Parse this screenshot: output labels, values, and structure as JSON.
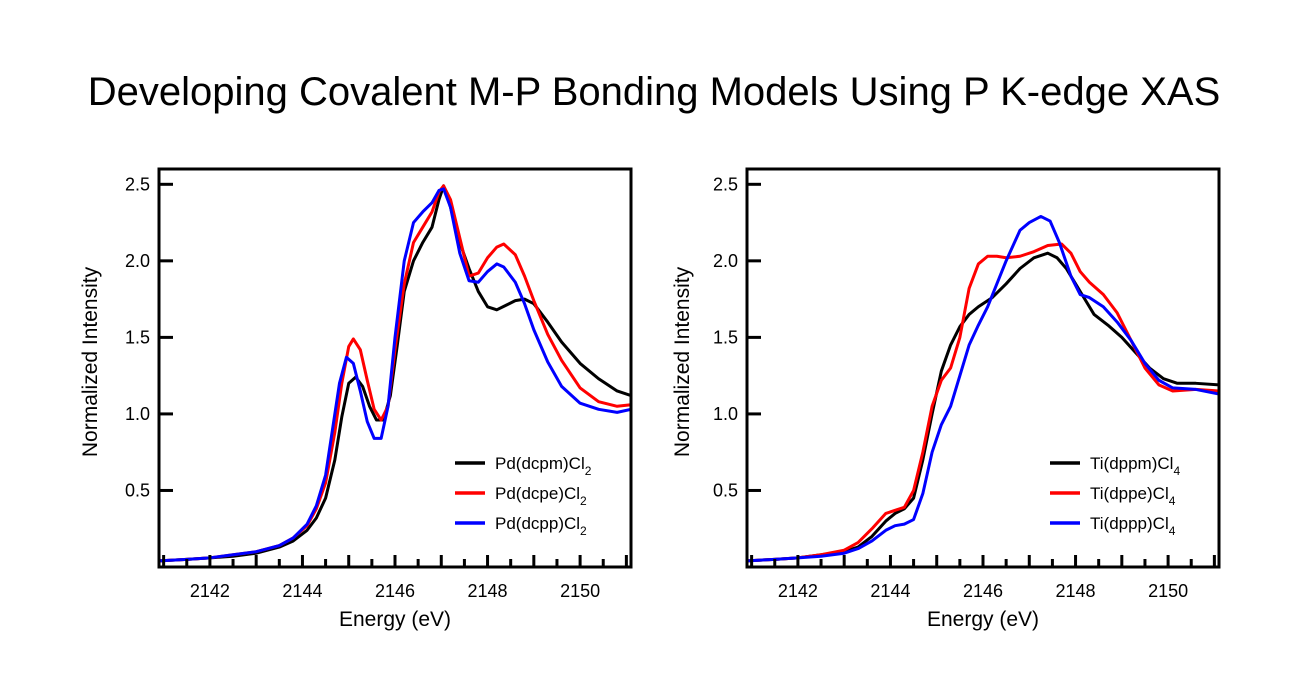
{
  "title": "Developing Covalent M-P Bonding Models Using P K-edge XAS",
  "chart_data": [
    {
      "type": "line",
      "title": "",
      "xlabel": "Energy (eV)",
      "ylabel": "Normalized Intensity",
      "xlim": [
        2140.9,
        2151.1
      ],
      "ylim": [
        0,
        2.6
      ],
      "xticks": [
        2142,
        2144,
        2146,
        2148,
        2150
      ],
      "xtick_labels": [
        "2142",
        "2144",
        "2146",
        "2148",
        "2150"
      ],
      "x_minor_step": 0.5,
      "yticks": [
        0.5,
        1.0,
        1.5,
        2.0,
        2.5
      ],
      "ytick_labels": [
        "0.5",
        "1.0",
        "1.5",
        "2.0",
        "2.5"
      ],
      "grid": false,
      "legend_position": "bottom-right",
      "series": [
        {
          "name": "Pd(dcpm)Cl",
          "subscript": "2",
          "color": "#000000",
          "x": [
            2140.9,
            2141.5,
            2142,
            2142.5,
            2143,
            2143.5,
            2143.8,
            2144.1,
            2144.3,
            2144.5,
            2144.7,
            2144.85,
            2145.0,
            2145.15,
            2145.3,
            2145.45,
            2145.6,
            2145.75,
            2145.9,
            2146.05,
            2146.2,
            2146.4,
            2146.6,
            2146.8,
            2146.95,
            2147.05,
            2147.2,
            2147.4,
            2147.6,
            2147.8,
            2148.0,
            2148.2,
            2148.4,
            2148.6,
            2148.8,
            2149.0,
            2149.3,
            2149.6,
            2150.0,
            2150.4,
            2150.8,
            2151.1
          ],
          "y": [
            0.04,
            0.05,
            0.06,
            0.07,
            0.09,
            0.13,
            0.17,
            0.24,
            0.32,
            0.45,
            0.7,
            0.98,
            1.2,
            1.24,
            1.18,
            1.05,
            0.96,
            0.96,
            1.12,
            1.45,
            1.8,
            2.0,
            2.12,
            2.22,
            2.4,
            2.49,
            2.35,
            2.12,
            1.95,
            1.8,
            1.7,
            1.68,
            1.71,
            1.74,
            1.75,
            1.72,
            1.6,
            1.47,
            1.33,
            1.23,
            1.15,
            1.12
          ]
        },
        {
          "name": "Pd(dcpe)Cl",
          "subscript": "2",
          "color": "#ff0000",
          "x": [
            2140.9,
            2141.5,
            2142,
            2142.5,
            2143,
            2143.5,
            2143.8,
            2144.1,
            2144.3,
            2144.5,
            2144.7,
            2144.85,
            2145.0,
            2145.1,
            2145.25,
            2145.4,
            2145.55,
            2145.7,
            2145.85,
            2146.0,
            2146.2,
            2146.4,
            2146.6,
            2146.8,
            2146.95,
            2147.05,
            2147.2,
            2147.4,
            2147.6,
            2147.8,
            2148.0,
            2148.2,
            2148.35,
            2148.6,
            2148.8,
            2149.0,
            2149.3,
            2149.6,
            2150.0,
            2150.4,
            2150.8,
            2151.1
          ],
          "y": [
            0.04,
            0.05,
            0.06,
            0.08,
            0.1,
            0.14,
            0.19,
            0.27,
            0.38,
            0.55,
            0.88,
            1.2,
            1.44,
            1.49,
            1.42,
            1.22,
            1.03,
            0.96,
            1.05,
            1.42,
            1.85,
            2.12,
            2.22,
            2.32,
            2.45,
            2.49,
            2.4,
            2.15,
            1.9,
            1.92,
            2.02,
            2.09,
            2.11,
            2.04,
            1.9,
            1.74,
            1.52,
            1.35,
            1.17,
            1.08,
            1.05,
            1.06
          ]
        },
        {
          "name": "Pd(dcpp)Cl",
          "subscript": "2",
          "color": "#0000ff",
          "x": [
            2140.9,
            2141.5,
            2142,
            2142.5,
            2143,
            2143.5,
            2143.8,
            2144.1,
            2144.3,
            2144.5,
            2144.65,
            2144.8,
            2144.95,
            2145.1,
            2145.25,
            2145.4,
            2145.55,
            2145.7,
            2145.85,
            2146.0,
            2146.2,
            2146.4,
            2146.6,
            2146.8,
            2146.95,
            2147.05,
            2147.2,
            2147.4,
            2147.6,
            2147.8,
            2148.0,
            2148.2,
            2148.35,
            2148.6,
            2148.8,
            2149.0,
            2149.3,
            2149.6,
            2150.0,
            2150.4,
            2150.8,
            2151.1
          ],
          "y": [
            0.04,
            0.05,
            0.06,
            0.08,
            0.1,
            0.14,
            0.19,
            0.28,
            0.4,
            0.6,
            0.9,
            1.2,
            1.37,
            1.33,
            1.15,
            0.95,
            0.84,
            0.84,
            1.05,
            1.5,
            2.0,
            2.25,
            2.32,
            2.38,
            2.46,
            2.47,
            2.35,
            2.05,
            1.87,
            1.86,
            1.93,
            1.98,
            1.96,
            1.86,
            1.72,
            1.55,
            1.34,
            1.18,
            1.07,
            1.03,
            1.01,
            1.03
          ]
        }
      ]
    },
    {
      "type": "line",
      "title": "",
      "xlabel": "Energy (eV)",
      "ylabel": "Normalized Intensity",
      "xlim": [
        2140.9,
        2151.1
      ],
      "ylim": [
        0,
        2.6
      ],
      "xticks": [
        2142,
        2144,
        2146,
        2148,
        2150
      ],
      "xtick_labels": [
        "2142",
        "2144",
        "2146",
        "2148",
        "2150"
      ],
      "x_minor_step": 0.5,
      "yticks": [
        0.5,
        1.0,
        1.5,
        2.0,
        2.5
      ],
      "ytick_labels": [
        "0.5",
        "1.0",
        "1.5",
        "2.0",
        "2.5"
      ],
      "grid": false,
      "legend_position": "bottom-right",
      "series": [
        {
          "name": "Ti(dppm)Cl",
          "subscript": "4",
          "color": "#000000",
          "x": [
            2140.9,
            2141.5,
            2142,
            2142.5,
            2143,
            2143.3,
            2143.6,
            2143.9,
            2144.1,
            2144.3,
            2144.5,
            2144.7,
            2144.9,
            2145.1,
            2145.3,
            2145.5,
            2145.7,
            2145.9,
            2146.2,
            2146.5,
            2146.8,
            2147.1,
            2147.4,
            2147.6,
            2147.8,
            2148.0,
            2148.2,
            2148.4,
            2148.7,
            2149.0,
            2149.3,
            2149.6,
            2149.9,
            2150.2,
            2150.6,
            2151.1
          ],
          "y": [
            0.04,
            0.05,
            0.06,
            0.08,
            0.1,
            0.13,
            0.2,
            0.3,
            0.35,
            0.38,
            0.45,
            0.7,
            1.0,
            1.28,
            1.45,
            1.57,
            1.65,
            1.7,
            1.76,
            1.85,
            1.95,
            2.02,
            2.05,
            2.02,
            1.95,
            1.85,
            1.75,
            1.65,
            1.58,
            1.5,
            1.4,
            1.3,
            1.23,
            1.2,
            1.2,
            1.19
          ]
        },
        {
          "name": "Ti(dppe)Cl",
          "subscript": "4",
          "color": "#ff0000",
          "x": [
            2140.9,
            2141.5,
            2142,
            2142.5,
            2143,
            2143.3,
            2143.6,
            2143.9,
            2144.1,
            2144.3,
            2144.5,
            2144.7,
            2144.9,
            2145.1,
            2145.3,
            2145.5,
            2145.7,
            2145.9,
            2146.1,
            2146.3,
            2146.5,
            2146.8,
            2147.1,
            2147.4,
            2147.7,
            2147.9,
            2148.1,
            2148.3,
            2148.6,
            2148.9,
            2149.2,
            2149.5,
            2149.8,
            2150.1,
            2150.6,
            2151.1
          ],
          "y": [
            0.04,
            0.05,
            0.06,
            0.08,
            0.11,
            0.16,
            0.25,
            0.35,
            0.37,
            0.39,
            0.5,
            0.75,
            1.05,
            1.22,
            1.3,
            1.5,
            1.82,
            1.98,
            2.03,
            2.03,
            2.02,
            2.03,
            2.06,
            2.1,
            2.11,
            2.05,
            1.93,
            1.86,
            1.78,
            1.66,
            1.48,
            1.3,
            1.19,
            1.15,
            1.16,
            1.15
          ]
        },
        {
          "name": "Ti(dppp)Cl",
          "subscript": "4",
          "color": "#0000ff",
          "x": [
            2140.9,
            2141.5,
            2142,
            2142.5,
            2143,
            2143.3,
            2143.6,
            2143.9,
            2144.1,
            2144.3,
            2144.5,
            2144.7,
            2144.9,
            2145.1,
            2145.3,
            2145.5,
            2145.7,
            2145.9,
            2146.1,
            2146.3,
            2146.5,
            2146.8,
            2147.0,
            2147.25,
            2147.45,
            2147.65,
            2147.9,
            2148.1,
            2148.3,
            2148.6,
            2148.9,
            2149.2,
            2149.5,
            2149.8,
            2150.1,
            2150.6,
            2151.1
          ],
          "y": [
            0.04,
            0.05,
            0.06,
            0.07,
            0.09,
            0.12,
            0.17,
            0.24,
            0.27,
            0.28,
            0.31,
            0.48,
            0.75,
            0.93,
            1.05,
            1.25,
            1.45,
            1.58,
            1.7,
            1.85,
            2.0,
            2.2,
            2.25,
            2.29,
            2.26,
            2.12,
            1.9,
            1.78,
            1.76,
            1.7,
            1.6,
            1.48,
            1.33,
            1.22,
            1.17,
            1.16,
            1.13
          ]
        }
      ]
    }
  ]
}
